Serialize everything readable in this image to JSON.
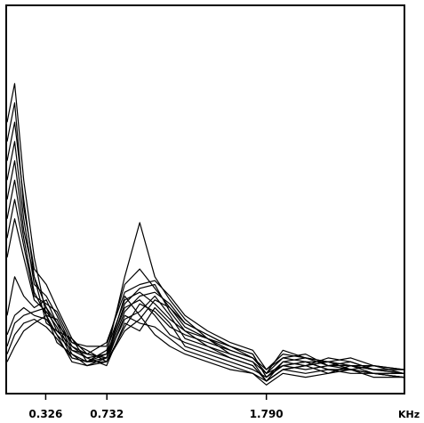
{
  "chart_data": {
    "type": "line",
    "title": "",
    "xlabel": "KHz",
    "ylabel": "",
    "x_ticks": [
      {
        "value": 0.326,
        "label": "0.326"
      },
      {
        "value": 0.732,
        "label": "0.732"
      },
      {
        "value": 1.79,
        "label": "1.790"
      }
    ],
    "x_unit_label": "KHz",
    "xlim": [
      0.07,
      2.7
    ],
    "ylim": [
      0,
      100
    ],
    "grid": false,
    "legend": "none",
    "line_color": "#000000",
    "series": [
      {
        "x": [
          0.07,
          0.12,
          0.18,
          0.25,
          0.33,
          0.4,
          0.5,
          0.6,
          0.73,
          0.85,
          0.95,
          1.05,
          1.15,
          1.25,
          1.4,
          1.55,
          1.7,
          1.79,
          1.9,
          2.05,
          2.2,
          2.35,
          2.5,
          2.7
        ],
        "y": [
          70,
          80,
          55,
          35,
          20,
          15,
          8,
          7,
          9,
          25,
          20,
          15,
          12,
          10,
          8,
          6,
          5,
          2,
          5,
          4,
          5,
          6,
          4,
          4
        ]
      },
      {
        "x": [
          0.07,
          0.12,
          0.18,
          0.25,
          0.33,
          0.4,
          0.5,
          0.6,
          0.73,
          0.85,
          0.95,
          1.05,
          1.15,
          1.25,
          1.4,
          1.55,
          1.7,
          1.79,
          1.9,
          2.05,
          2.2,
          2.35,
          2.5,
          2.7
        ],
        "y": [
          60,
          70,
          50,
          30,
          22,
          18,
          10,
          8,
          8,
          20,
          18,
          17,
          14,
          11,
          9,
          7,
          5,
          3,
          6,
          5,
          6,
          5,
          5,
          4
        ]
      },
      {
        "x": [
          0.07,
          0.12,
          0.18,
          0.25,
          0.33,
          0.4,
          0.5,
          0.6,
          0.73,
          0.85,
          0.95,
          1.05,
          1.15,
          1.25,
          1.4,
          1.55,
          1.7,
          1.79,
          1.9,
          2.05,
          2.2,
          2.35,
          2.5,
          2.7
        ],
        "y": [
          55,
          65,
          45,
          28,
          25,
          20,
          12,
          9,
          7,
          18,
          16,
          22,
          18,
          12,
          10,
          8,
          6,
          4,
          7,
          6,
          7,
          6,
          5,
          5
        ]
      },
      {
        "x": [
          0.07,
          0.12,
          0.18,
          0.25,
          0.33,
          0.4,
          0.5,
          0.6,
          0.73,
          0.85,
          0.95,
          1.05,
          1.15,
          1.25,
          1.4,
          1.55,
          1.7,
          1.79,
          1.9,
          2.05,
          2.2,
          2.35,
          2.5,
          2.7
        ],
        "y": [
          50,
          60,
          42,
          30,
          18,
          16,
          14,
          8,
          10,
          22,
          24,
          20,
          15,
          13,
          11,
          9,
          7,
          3,
          8,
          7,
          5,
          7,
          6,
          5
        ]
      },
      {
        "x": [
          0.07,
          0.12,
          0.18,
          0.25,
          0.33,
          0.4,
          0.5,
          0.6,
          0.73,
          0.85,
          0.95,
          1.05,
          1.15,
          1.25,
          1.4,
          1.55,
          1.7,
          1.79,
          1.9,
          2.05,
          2.2,
          2.35,
          2.5,
          2.7
        ],
        "y": [
          45,
          55,
          40,
          26,
          20,
          19,
          11,
          10,
          9,
          19,
          21,
          25,
          20,
          14,
          12,
          10,
          8,
          5,
          9,
          8,
          6,
          6,
          7,
          6
        ]
      },
      {
        "x": [
          0.07,
          0.12,
          0.18,
          0.25,
          0.33,
          0.4,
          0.5,
          0.6,
          0.73,
          0.85,
          0.95,
          1.05,
          1.15,
          1.25,
          1.4,
          1.55,
          1.7,
          1.79,
          1.9,
          2.05,
          2.2,
          2.35,
          2.5,
          2.7
        ],
        "y": [
          40,
          50,
          38,
          25,
          23,
          21,
          13,
          11,
          8,
          17,
          23,
          21,
          17,
          15,
          13,
          11,
          9,
          6,
          10,
          9,
          7,
          8,
          6,
          6
        ]
      },
      {
        "x": [
          0.07,
          0.12,
          0.18,
          0.25,
          0.33,
          0.4,
          0.5,
          0.6,
          0.73,
          0.85,
          0.95,
          1.05,
          1.15,
          1.25,
          1.4,
          1.55,
          1.7,
          1.79,
          1.9,
          2.05,
          2.2,
          2.35,
          2.5,
          2.7
        ],
        "y": [
          35,
          45,
          35,
          24,
          21,
          17,
          9,
          8,
          11,
          24,
          26,
          23,
          19,
          16,
          14,
          12,
          10,
          4,
          7,
          8,
          8,
          7,
          5,
          5
        ]
      },
      {
        "x": [
          0.07,
          0.12,
          0.18,
          0.25,
          0.33,
          0.4,
          0.5,
          0.6,
          0.73,
          0.85,
          0.95,
          1.05,
          1.15,
          1.25,
          1.4,
          1.55,
          1.7,
          1.79,
          1.9,
          2.05,
          2.2,
          2.35,
          2.5,
          2.7
        ],
        "y": [
          20,
          30,
          25,
          22,
          24,
          18,
          13,
          12,
          12,
          28,
          32,
          27,
          22,
          18,
          15,
          12,
          9,
          5,
          11,
          9,
          8,
          9,
          7,
          6
        ]
      },
      {
        "x": [
          0.07,
          0.12,
          0.18,
          0.25,
          0.33,
          0.4,
          0.5,
          0.6,
          0.73,
          0.85,
          0.95,
          1.05,
          1.15,
          1.25,
          1.4,
          1.55,
          1.7,
          1.79,
          1.9,
          2.05,
          2.2,
          2.35,
          2.5,
          2.7
        ],
        "y": [
          15,
          20,
          22,
          20,
          19,
          15,
          11,
          9,
          10,
          30,
          44,
          30,
          24,
          19,
          14,
          10,
          8,
          3,
          6,
          7,
          9,
          8,
          6,
          5
        ]
      },
      {
        "x": [
          0.07,
          0.12,
          0.18,
          0.25,
          0.33,
          0.4,
          0.5,
          0.6,
          0.73,
          0.85,
          0.95,
          1.05,
          1.15,
          1.25,
          1.4,
          1.55,
          1.7,
          1.79,
          1.9,
          2.05,
          2.2,
          2.35,
          2.5,
          2.7
        ],
        "y": [
          12,
          18,
          20,
          21,
          22,
          16,
          12,
          10,
          13,
          26,
          28,
          29,
          25,
          20,
          16,
          13,
          11,
          6,
          9,
          10,
          7,
          7,
          6,
          6
        ]
      },
      {
        "x": [
          0.07,
          0.12,
          0.18,
          0.25,
          0.33,
          0.4,
          0.5,
          0.6,
          0.73,
          0.85,
          0.95,
          1.05,
          1.15,
          1.25,
          1.4,
          1.55,
          1.7,
          1.79,
          1.9,
          2.05,
          2.2,
          2.35,
          2.5,
          2.7
        ],
        "y": [
          10,
          15,
          18,
          19,
          17,
          14,
          9,
          8,
          9,
          21,
          25,
          26,
          23,
          18,
          15,
          12,
          10,
          4,
          8,
          9,
          8,
          7,
          7,
          5
        ]
      },
      {
        "x": [
          0.07,
          0.12,
          0.18,
          0.25,
          0.33,
          0.4,
          0.5,
          0.6,
          0.73,
          0.85,
          0.95,
          1.05,
          1.15,
          1.25,
          1.4,
          1.55,
          1.7,
          1.79,
          1.9,
          2.05,
          2.2,
          2.35,
          2.5,
          2.7
        ],
        "y": [
          8,
          12,
          16,
          18,
          20,
          13,
          10,
          7,
          8,
          16,
          19,
          24,
          22,
          17,
          14,
          11,
          9,
          5,
          7,
          8,
          6,
          6,
          5,
          4
        ]
      },
      {
        "x": [
          0.07,
          0.12,
          0.18,
          0.25,
          0.33,
          0.4,
          0.5,
          0.6,
          0.73,
          0.85,
          0.95,
          1.05,
          1.15,
          1.25,
          1.4,
          1.55,
          1.7,
          1.79,
          1.9,
          2.05,
          2.2,
          2.35,
          2.5,
          2.7
        ],
        "y": [
          65,
          75,
          48,
          32,
          28,
          22,
          14,
          10,
          9,
          23,
          27,
          28,
          21,
          16,
          12,
          9,
          7,
          3,
          6,
          7,
          8,
          6,
          5,
          4
        ]
      }
    ]
  }
}
